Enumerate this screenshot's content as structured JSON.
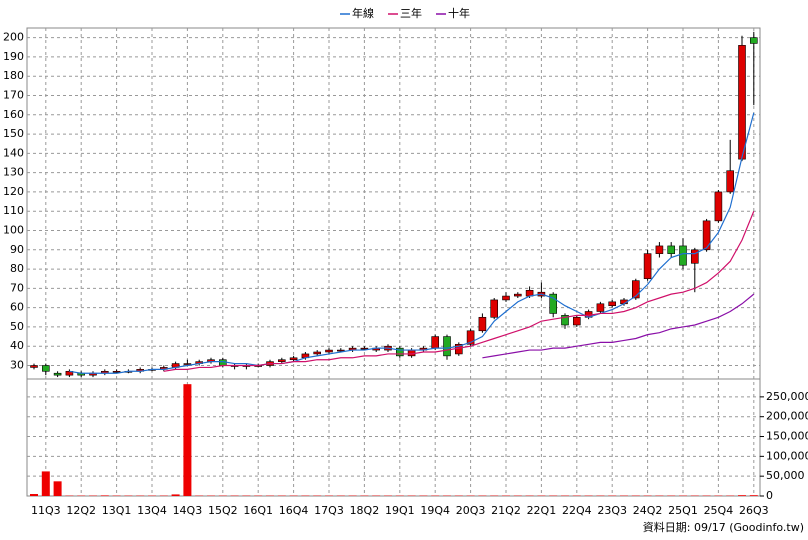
{
  "chart_data": {
    "type": "candlestick",
    "categories": [
      null,
      "11Q3",
      null,
      null,
      "12Q2",
      null,
      null,
      "13Q1",
      null,
      null,
      "13Q4",
      null,
      null,
      "14Q3",
      null,
      null,
      "15Q2",
      null,
      null,
      "16Q1",
      null,
      null,
      "16Q4",
      null,
      null,
      "17Q3",
      null,
      null,
      "18Q2",
      null,
      null,
      "19Q1",
      null,
      null,
      "19Q4",
      null,
      null,
      "20Q3",
      null,
      null,
      "21Q2",
      null,
      null,
      "22Q1",
      null,
      null,
      "22Q4",
      null,
      null,
      "23Q3",
      null,
      null,
      "24Q2",
      null,
      null,
      "25Q1",
      null,
      null,
      "25Q4",
      null,
      null,
      "26Q3"
    ],
    "candles": {
      "up_color": "#dd0000",
      "down_color": "#22aa22",
      "open": [
        29,
        30,
        26,
        25,
        26,
        25,
        26,
        27,
        27,
        27,
        28,
        28,
        29,
        31,
        31,
        32,
        33,
        30,
        30,
        30,
        30,
        32,
        33,
        34,
        36,
        37,
        38,
        38,
        39,
        38,
        38,
        39,
        35,
        38,
        39,
        45,
        36,
        41,
        48,
        55,
        64,
        66,
        66,
        66,
        67,
        56,
        51,
        55,
        58,
        61,
        62,
        65,
        75,
        88,
        92,
        92,
        83,
        90,
        105,
        120,
        137,
        200
      ],
      "high": [
        31,
        31,
        27,
        28,
        27,
        27,
        28,
        28,
        28,
        29,
        29,
        30,
        32,
        33,
        33,
        34,
        34,
        31,
        31,
        31,
        33,
        34,
        35,
        37,
        38,
        39,
        39,
        40,
        40,
        40,
        41,
        40,
        39,
        40,
        46,
        46,
        42,
        49,
        57,
        65,
        68,
        68,
        71,
        73,
        68,
        57,
        56,
        59,
        63,
        64,
        65,
        75,
        90,
        94,
        94,
        96,
        91,
        106,
        121,
        147,
        201,
        203
      ],
      "low": [
        28,
        25,
        24,
        24,
        24,
        24,
        25,
        26,
        26,
        26,
        27,
        27,
        28,
        30,
        30,
        31,
        29,
        28,
        28,
        29,
        29,
        31,
        32,
        33,
        35,
        36,
        37,
        37,
        38,
        37,
        37,
        34,
        34,
        37,
        38,
        33,
        35,
        40,
        47,
        54,
        63,
        65,
        65,
        65,
        55,
        49,
        50,
        54,
        57,
        60,
        61,
        64,
        74,
        86,
        86,
        80,
        68,
        89,
        104,
        119,
        136,
        165
      ],
      "close": [
        30,
        27,
        25,
        27,
        25,
        26,
        27,
        27,
        27,
        28,
        28,
        29,
        31,
        31,
        32,
        33,
        30,
        30,
        30,
        30,
        32,
        33,
        34,
        36,
        37,
        38,
        38,
        39,
        39,
        39,
        40,
        35,
        38,
        39,
        45,
        35,
        41,
        48,
        55,
        64,
        66,
        67,
        69,
        68,
        57,
        51,
        55,
        58,
        62,
        63,
        64,
        74,
        88,
        92,
        88,
        82,
        90,
        105,
        120,
        131,
        196,
        197
      ]
    },
    "series": [
      {
        "name": "年線",
        "color": "#1f6fd0",
        "values": [
          null,
          null,
          null,
          27,
          26,
          26,
          26,
          26,
          27,
          27,
          28,
          28,
          29,
          30,
          31,
          32,
          32,
          31,
          31,
          30,
          31,
          31,
          32,
          34,
          35,
          36,
          37,
          38,
          38,
          39,
          39,
          38,
          38,
          38,
          39,
          39,
          40,
          42,
          45,
          53,
          58,
          63,
          66,
          67,
          65,
          61,
          58,
          55,
          57,
          59,
          62,
          66,
          72,
          80,
          86,
          88,
          88,
          91,
          99,
          112,
          138,
          161
        ]
      },
      {
        "name": "三年",
        "color": "#d0106a",
        "values": [
          null,
          null,
          null,
          null,
          null,
          null,
          null,
          null,
          null,
          null,
          null,
          27,
          28,
          28,
          29,
          29,
          30,
          30,
          30,
          30,
          31,
          31,
          32,
          32,
          33,
          33,
          34,
          34,
          35,
          35,
          36,
          36,
          36,
          37,
          37,
          38,
          39,
          40,
          42,
          44,
          46,
          48,
          50,
          53,
          54,
          55,
          56,
          56,
          57,
          57,
          58,
          60,
          63,
          65,
          67,
          68,
          70,
          73,
          78,
          84,
          95,
          110
        ]
      },
      {
        "name": "十年",
        "color": "#8a0fa8",
        "values": [
          null,
          null,
          null,
          null,
          null,
          null,
          null,
          null,
          null,
          null,
          null,
          null,
          null,
          null,
          null,
          null,
          null,
          null,
          null,
          null,
          null,
          null,
          null,
          null,
          null,
          null,
          null,
          null,
          null,
          null,
          null,
          null,
          null,
          null,
          null,
          null,
          null,
          null,
          34,
          35,
          36,
          37,
          38,
          38,
          39,
          39,
          40,
          41,
          42,
          42,
          43,
          44,
          46,
          47,
          49,
          50,
          51,
          53,
          55,
          58,
          62,
          67
        ]
      }
    ],
    "volume": {
      "color": "#ee0000",
      "values": [
        5000,
        62000,
        37000,
        1000,
        1000,
        1000,
        1500,
        1000,
        1000,
        1000,
        1000,
        1000,
        4000,
        282000,
        1000,
        1000,
        1000,
        1000,
        1000,
        1000,
        1000,
        1000,
        1000,
        1000,
        1000,
        1000,
        1000,
        1000,
        1000,
        1000,
        1000,
        1000,
        1000,
        1000,
        1000,
        1000,
        1000,
        1000,
        1000,
        1000,
        1000,
        1000,
        1000,
        1000,
        1000,
        1000,
        1000,
        1000,
        1000,
        1000,
        1000,
        1000,
        1000,
        1000,
        1000,
        1000,
        1000,
        1000,
        1000,
        1000,
        2000,
        2000
      ]
    },
    "ylim": [
      23,
      205
    ],
    "yticks": [
      30,
      40,
      50,
      60,
      70,
      80,
      90,
      100,
      110,
      120,
      130,
      140,
      150,
      160,
      170,
      180,
      190,
      200
    ],
    "y2lim": [
      0,
      290000
    ],
    "y2ticks": [
      0,
      {
        "value": 50000,
        "label": "50,000"
      },
      {
        "value": 100000,
        "label": "100,000"
      },
      {
        "value": 150000,
        "label": "150,000"
      },
      {
        "value": 200000,
        "label": "200,000"
      },
      {
        "value": 250000,
        "label": "250,000"
      }
    ],
    "grid": true,
    "legend": "top",
    "footer": "資料日期: 09/17 (Goodinfo.tw)"
  }
}
